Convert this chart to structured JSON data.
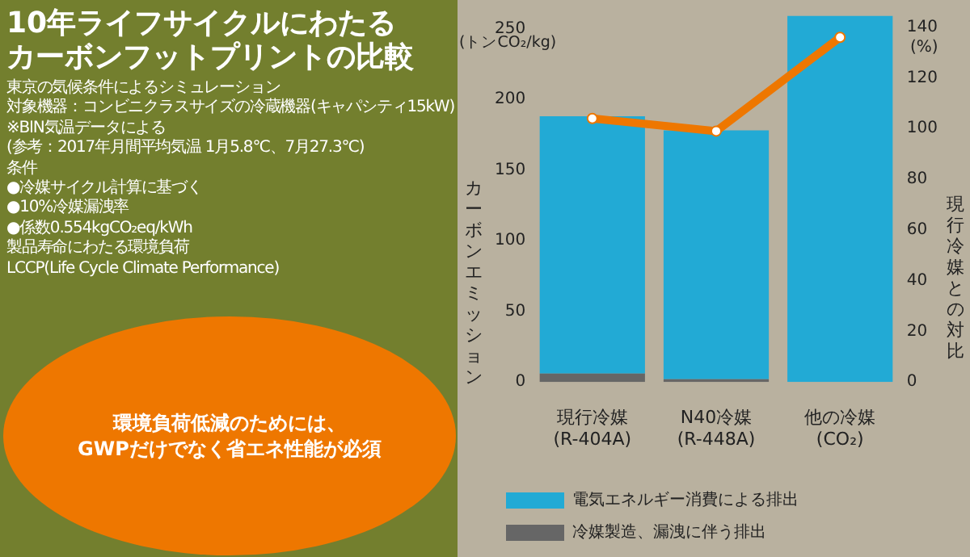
{
  "chart_data": {
    "type": "bar",
    "title": "10年ライフサイクルにわたる",
    "subtitle": "カーボンフットプリントの比較",
    "annotations": [
      "東京の気候条件によるシミュレーション",
      "対象機器：コンビニクラスサイズの冷蔵機器(キャパシティ15kW)",
      "※BIN気温データによる",
      "(参考：2017年月間平均気温 1月5.8℃、7月27.3℃)",
      "条件",
      "●冷媒サイクル計算に基づく",
      "●10%冷媒漏洩率",
      "●係数0.554kgCO₂eq/kWh",
      "製品寿命にわたる環境負荷",
      "LCCP(Life Cycle Climate Performance)",
      "環境負荷低減のためには、",
      "GWPだけでなく省エネ性能が必須",
      "(トンCO₂/kg)",
      "(%)"
    ],
    "ylabel": "カーボンエミッション",
    "y2label": "現行冷媒との対比",
    "categories": [
      "現行冷媒\n(R-404A)",
      "N40冷媒\n(R-448A)",
      "他の冷媒\n(CO₂)"
    ],
    "stacked": true,
    "series": [
      {
        "name": "冷媒製造、漏洩に伴う排出",
        "color": "#666666",
        "values": [
          6,
          2,
          0
        ]
      },
      {
        "name": "電気エネルギー消費による排出",
        "color": "#22aad5",
        "values": [
          182,
          176,
          259
        ]
      },
      {
        "type": "line",
        "axis": "y2",
        "color": "#ee7700",
        "values": [
          104,
          99,
          136
        ]
      }
    ],
    "marker": "circle",
    "line_style": "solid",
    "ylim": [
      0,
      260
    ],
    "yticks": [
      0,
      50,
      100,
      150,
      200,
      250
    ],
    "y2lim": [
      0,
      145
    ],
    "y2ticks": [
      0,
      20,
      40,
      60,
      80,
      100,
      120,
      140
    ],
    "grid": false,
    "legend": "bottom"
  }
}
